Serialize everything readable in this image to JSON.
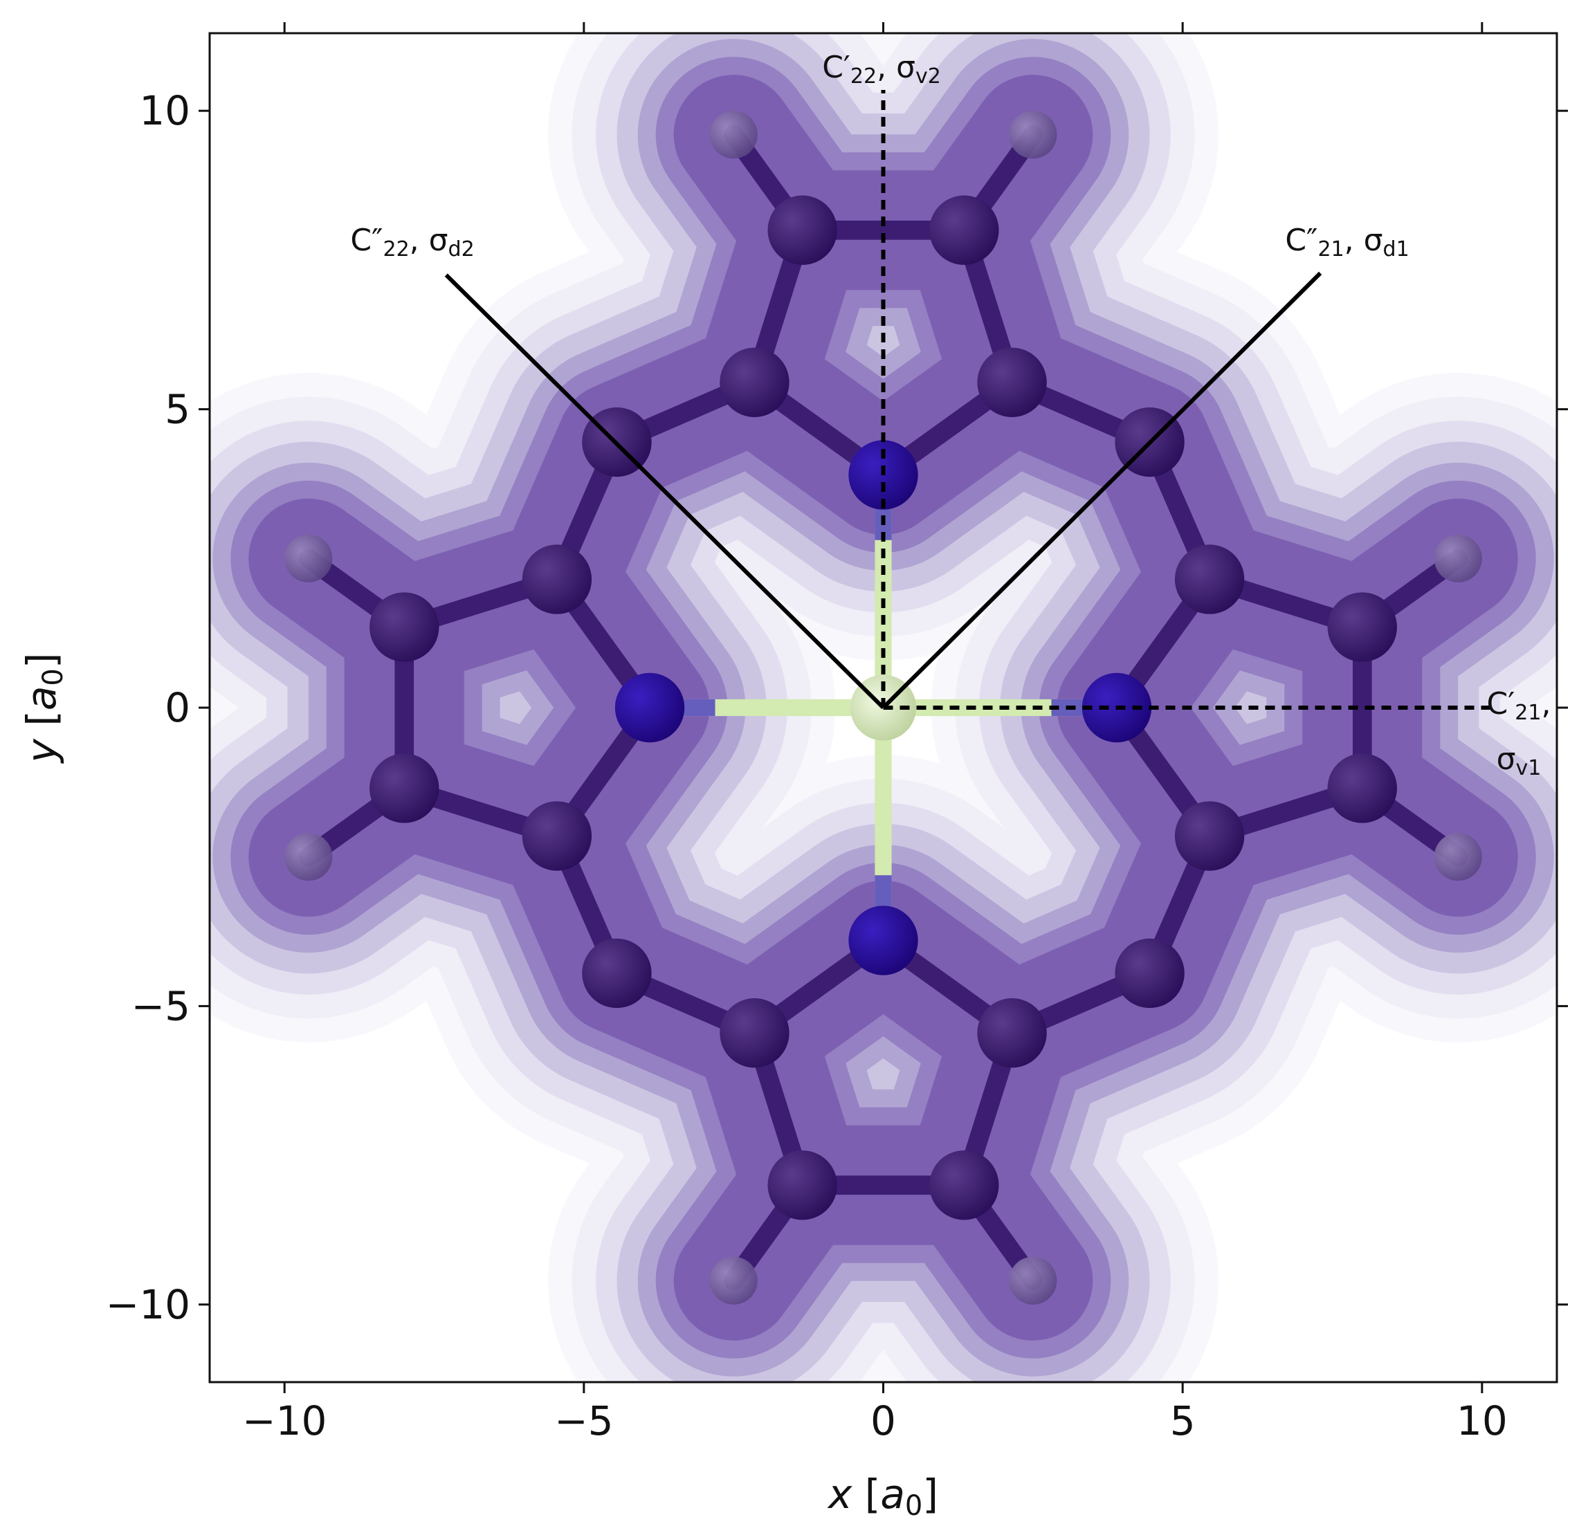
{
  "chart_data": {
    "type": "contour",
    "xlabel": {
      "parts": [
        "x",
        " [",
        "a",
        "0",
        "]"
      ]
    },
    "ylabel": {
      "parts": [
        "y",
        " [",
        "a",
        "0",
        "]"
      ]
    },
    "xlim": [
      -11.25,
      11.25
    ],
    "ylim": [
      -11.3,
      11.3
    ],
    "xticks": [
      {
        "value": -10,
        "label": "−10"
      },
      {
        "value": -5,
        "label": "−5"
      },
      0,
      5,
      10
    ],
    "yticks": [
      {
        "value": -10,
        "label": "−10"
      },
      {
        "value": -5,
        "label": "−5"
      },
      0,
      5,
      10
    ],
    "colormap": "Purples",
    "annotations": [
      {
        "lines": [
          [
            "C′",
            "22",
            ", σ",
            "v2"
          ]
        ]
      },
      {
        "lines": [
          [
            "C″",
            "22",
            ", σ",
            "d2"
          ]
        ]
      },
      {
        "lines": [
          [
            "C″",
            "21",
            ", σ",
            "d1"
          ]
        ]
      },
      {
        "lines": [
          [
            "C′",
            "21",
            ","
          ],
          [
            "σ",
            "v1"
          ]
        ]
      }
    ]
  }
}
